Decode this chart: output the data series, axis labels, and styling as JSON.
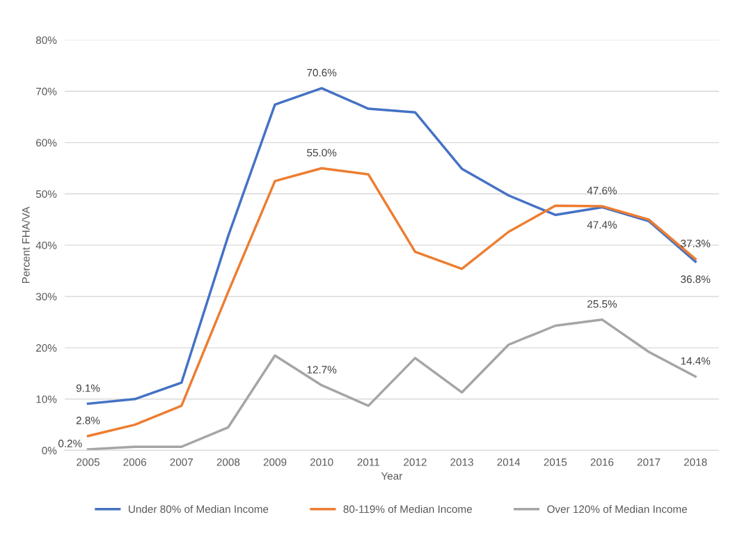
{
  "chart_data": {
    "type": "line",
    "ylabel": "Percent FHA/VA",
    "xlabel": "Year",
    "categories": [
      "2005",
      "2006",
      "2007",
      "2008",
      "2009",
      "2010",
      "2011",
      "2012",
      "2013",
      "2014",
      "2015",
      "2016",
      "2017",
      "2018"
    ],
    "series": [
      {
        "name": "Under 80% of Median Income",
        "color": "#4472c4",
        "values": [
          9.1,
          10.0,
          13.2,
          41.8,
          67.4,
          70.6,
          66.6,
          65.9,
          54.9,
          49.7,
          45.9,
          47.4,
          44.7,
          36.8
        ],
        "value_labels": [
          "9.1%",
          null,
          null,
          null,
          null,
          "70.6%",
          null,
          null,
          null,
          null,
          null,
          "47.4%",
          null,
          "36.8%"
        ]
      },
      {
        "name": "80-119% of Median Income",
        "color": "#ed7d31",
        "values": [
          2.8,
          5.0,
          8.7,
          30.9,
          52.5,
          55.0,
          53.8,
          38.7,
          35.4,
          42.6,
          47.7,
          47.6,
          45.0,
          37.3
        ],
        "value_labels": [
          "2.8%",
          null,
          null,
          null,
          null,
          "55.0%",
          null,
          null,
          null,
          null,
          null,
          "47.6%",
          null,
          "37.3%"
        ]
      },
      {
        "name": "Over 120% of Median Income",
        "color": "#a5a5a5",
        "values": [
          0.2,
          0.7,
          0.7,
          4.5,
          18.5,
          12.7,
          8.7,
          18.0,
          11.3,
          20.6,
          24.3,
          25.5,
          19.2,
          14.4
        ],
        "value_labels": [
          "0.2%",
          null,
          null,
          null,
          null,
          "12.7%",
          null,
          null,
          null,
          null,
          null,
          "25.5%",
          null,
          "14.4%"
        ]
      }
    ],
    "ylim": [
      0,
      80
    ],
    "yticks": [
      {
        "value": 0,
        "label": "0%"
      },
      {
        "value": 10,
        "label": "10%"
      },
      {
        "value": 20,
        "label": "20%"
      },
      {
        "value": 30,
        "label": "30%"
      },
      {
        "value": 40,
        "label": "40%"
      },
      {
        "value": 50,
        "label": "50%"
      },
      {
        "value": 60,
        "label": "60%"
      },
      {
        "value": 70,
        "label": "70%"
      },
      {
        "value": 80,
        "label": "80%"
      }
    ],
    "grid": "y",
    "legend": "bottom",
    "marker": "none",
    "line_style": "solid"
  }
}
